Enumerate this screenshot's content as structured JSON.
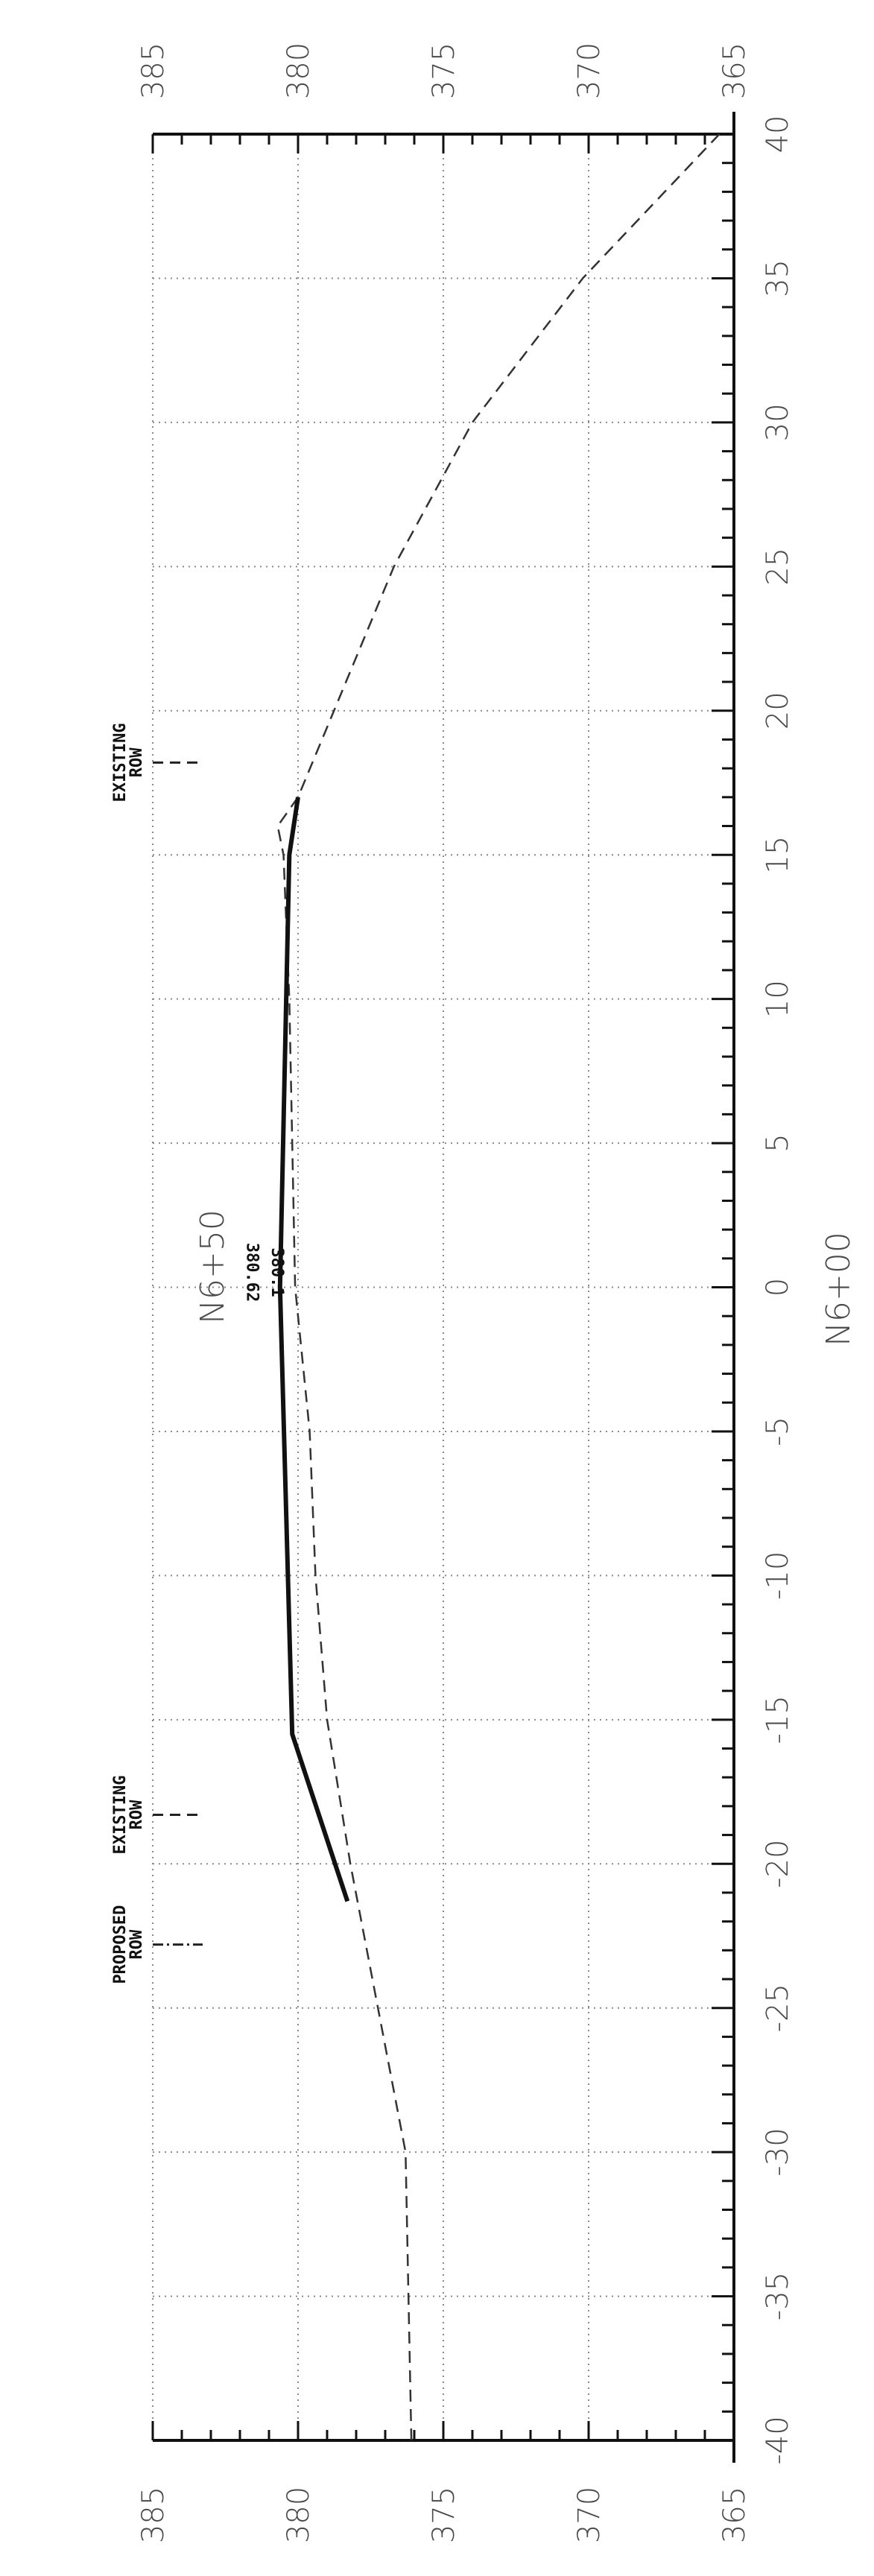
{
  "drawing": {
    "other_station_label": "N6+50",
    "station_label": "N6+00",
    "offset_ticks": [
      "-40",
      "-35",
      "-30",
      "-25",
      "-20",
      "-15",
      "-10",
      "-5",
      "0",
      "5",
      "10",
      "15",
      "20",
      "25",
      "30",
      "35",
      "40"
    ],
    "elevation_ticks": [
      "385",
      "380",
      "375",
      "370",
      "365"
    ],
    "annotations": {
      "proposed_row": [
        "PROPOSED",
        "ROW"
      ],
      "existing_row_left": [
        "EXISTING",
        "ROW"
      ],
      "existing_row_right": [
        "EXISTING",
        "ROW"
      ],
      "existing_elevation": "380.1",
      "proposed_elevation": "380.62"
    }
  },
  "chart_data": {
    "type": "line",
    "orientation": "rotated 90 degrees clockwise on the sheet",
    "xlim": [
      -40,
      40
    ],
    "ylim": [
      365,
      385
    ],
    "grid": true,
    "series": [
      {
        "style": "dashed",
        "points": [
          [
            -40,
            376.1
          ],
          [
            -30,
            376.3
          ],
          [
            -20,
            378.2
          ],
          [
            -15,
            379.0
          ],
          [
            -10,
            379.4
          ],
          [
            -5,
            379.6
          ],
          [
            0,
            380.1
          ],
          [
            5,
            380.2
          ],
          [
            10,
            380.3
          ],
          [
            15,
            380.5
          ],
          [
            16,
            380.7
          ],
          [
            17,
            380.0
          ],
          [
            25,
            376.7
          ],
          [
            30,
            374.0
          ],
          [
            35,
            370.2
          ],
          [
            40,
            365.5
          ]
        ]
      },
      {
        "style": "solid-thick",
        "points": [
          [
            -21.3,
            378.3
          ],
          [
            -15.5,
            380.2
          ],
          [
            0,
            380.62
          ],
          [
            15,
            380.3
          ],
          [
            17,
            380.0
          ]
        ]
      }
    ],
    "markers": [
      {
        "label": "PROPOSED ROW",
        "x": -22.8
      },
      {
        "label": "EXISTING ROW",
        "x": -18.3
      },
      {
        "label": "EXISTING ROW",
        "x": 18.2
      }
    ],
    "data_labels": [
      "380.1",
      "380.62"
    ]
  }
}
